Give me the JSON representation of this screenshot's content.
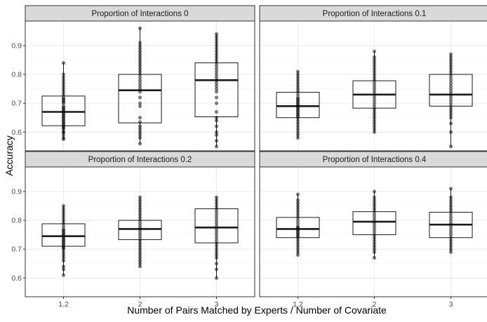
{
  "chart_data": {
    "type": "boxplot",
    "title": "",
    "xlabel": "Number of Pairs Matched by Experts / Number of Covariate",
    "ylabel": "Accuracy",
    "categories": [
      "1.2",
      "2",
      "3"
    ],
    "y_ticks": [
      0.6,
      0.7,
      0.8,
      0.9
    ],
    "y_tick_labels": [
      "0.6",
      "0.7",
      "0.8",
      "0.9"
    ],
    "ylim": [
      0.535,
      0.985
    ],
    "grid": true,
    "facet_layout": "2x2",
    "colors": {
      "strip_fill": "#d9d9d9",
      "panel_border": "#333333",
      "grid_major": "#ebebeb",
      "grid_minor": "#f4f4f4",
      "box_line": "#1a1a1a",
      "point": "#000000"
    },
    "panels": [
      {
        "label": "Proportion of Interactions 0",
        "boxes": [
          {
            "category": "1.2",
            "min": 0.575,
            "q1": 0.622,
            "median": 0.67,
            "q3": 0.725,
            "max": 0.84,
            "points": [
              0.575,
              0.58,
              0.59,
              0.6,
              0.6,
              0.61,
              0.615,
              0.62,
              0.625,
              0.63,
              0.635,
              0.64,
              0.645,
              0.65,
              0.655,
              0.66,
              0.665,
              0.67,
              0.675,
              0.68,
              0.685,
              0.69,
              0.7,
              0.705,
              0.71,
              0.715,
              0.72,
              0.73,
              0.74,
              0.75,
              0.76,
              0.77,
              0.78,
              0.79,
              0.8,
              0.84
            ]
          },
          {
            "category": "2",
            "min": 0.56,
            "q1": 0.632,
            "median": 0.745,
            "q3": 0.8,
            "max": 0.96,
            "points": [
              0.56,
              0.58,
              0.59,
              0.6,
              0.61,
              0.62,
              0.635,
              0.65,
              0.69,
              0.7,
              0.72,
              0.74,
              0.75,
              0.76,
              0.77,
              0.78,
              0.79,
              0.8,
              0.81,
              0.82,
              0.83,
              0.84,
              0.85,
              0.86,
              0.87,
              0.88,
              0.89,
              0.9,
              0.91,
              0.96
            ]
          },
          {
            "category": "3",
            "min": 0.55,
            "q1": 0.653,
            "median": 0.78,
            "q3": 0.84,
            "max": 0.94,
            "points": [
              0.55,
              0.57,
              0.59,
              0.6,
              0.62,
              0.64,
              0.65,
              0.67,
              0.7,
              0.72,
              0.74,
              0.75,
              0.76,
              0.77,
              0.78,
              0.79,
              0.8,
              0.81,
              0.82,
              0.83,
              0.84,
              0.85,
              0.86,
              0.87,
              0.88,
              0.89,
              0.9,
              0.91,
              0.92,
              0.93,
              0.94
            ]
          }
        ]
      },
      {
        "label": "Proportion of Interactions 0.1",
        "boxes": [
          {
            "category": "1.2",
            "min": 0.58,
            "q1": 0.65,
            "median": 0.69,
            "q3": 0.738,
            "max": 0.81,
            "points": [
              0.58,
              0.59,
              0.6,
              0.61,
              0.62,
              0.63,
              0.64,
              0.65,
              0.655,
              0.66,
              0.665,
              0.67,
              0.675,
              0.68,
              0.685,
              0.69,
              0.695,
              0.7,
              0.705,
              0.71,
              0.715,
              0.72,
              0.73,
              0.74,
              0.75,
              0.76,
              0.77,
              0.78,
              0.79,
              0.8,
              0.81
            ]
          },
          {
            "category": "2",
            "min": 0.6,
            "q1": 0.683,
            "median": 0.73,
            "q3": 0.778,
            "max": 0.88,
            "points": [
              0.6,
              0.61,
              0.62,
              0.63,
              0.64,
              0.65,
              0.66,
              0.67,
              0.68,
              0.69,
              0.7,
              0.71,
              0.72,
              0.73,
              0.74,
              0.75,
              0.76,
              0.77,
              0.78,
              0.79,
              0.8,
              0.81,
              0.82,
              0.83,
              0.84,
              0.85,
              0.86,
              0.88
            ]
          },
          {
            "category": "3",
            "min": 0.55,
            "q1": 0.69,
            "median": 0.73,
            "q3": 0.8,
            "max": 0.87,
            "points": [
              0.55,
              0.6,
              0.63,
              0.65,
              0.66,
              0.67,
              0.68,
              0.69,
              0.7,
              0.71,
              0.72,
              0.73,
              0.74,
              0.75,
              0.76,
              0.77,
              0.78,
              0.79,
              0.8,
              0.81,
              0.82,
              0.83,
              0.84,
              0.85,
              0.86,
              0.87
            ]
          }
        ]
      },
      {
        "label": "Proportion of Interactions 0.2",
        "boxes": [
          {
            "category": "1.2",
            "min": 0.61,
            "q1": 0.71,
            "median": 0.745,
            "q3": 0.788,
            "max": 0.85,
            "points": [
              0.61,
              0.63,
              0.64,
              0.66,
              0.67,
              0.68,
              0.69,
              0.7,
              0.705,
              0.71,
              0.715,
              0.72,
              0.725,
              0.73,
              0.735,
              0.74,
              0.745,
              0.75,
              0.755,
              0.76,
              0.765,
              0.77,
              0.78,
              0.79,
              0.8,
              0.81,
              0.82,
              0.83,
              0.84,
              0.85
            ]
          },
          {
            "category": "2",
            "min": 0.64,
            "q1": 0.733,
            "median": 0.77,
            "q3": 0.8,
            "max": 0.88,
            "points": [
              0.64,
              0.65,
              0.66,
              0.67,
              0.68,
              0.69,
              0.7,
              0.71,
              0.72,
              0.73,
              0.74,
              0.75,
              0.76,
              0.77,
              0.78,
              0.79,
              0.8,
              0.81,
              0.82,
              0.83,
              0.84,
              0.85,
              0.86,
              0.87,
              0.88
            ]
          },
          {
            "category": "3",
            "min": 0.6,
            "q1": 0.722,
            "median": 0.775,
            "q3": 0.84,
            "max": 0.88,
            "points": [
              0.6,
              0.63,
              0.65,
              0.67,
              0.68,
              0.69,
              0.7,
              0.71,
              0.72,
              0.73,
              0.74,
              0.75,
              0.76,
              0.77,
              0.78,
              0.79,
              0.8,
              0.81,
              0.82,
              0.83,
              0.84,
              0.85,
              0.86,
              0.87,
              0.88
            ]
          }
        ]
      },
      {
        "label": "Proportion of Interactions 0.4",
        "boxes": [
          {
            "category": "1.2",
            "min": 0.68,
            "q1": 0.74,
            "median": 0.77,
            "q3": 0.81,
            "max": 0.89,
            "points": [
              0.68,
              0.69,
              0.7,
              0.71,
              0.72,
              0.73,
              0.74,
              0.745,
              0.75,
              0.755,
              0.76,
              0.765,
              0.77,
              0.775,
              0.78,
              0.79,
              0.8,
              0.81,
              0.82,
              0.83,
              0.84,
              0.85,
              0.86,
              0.87,
              0.89
            ]
          },
          {
            "category": "2",
            "min": 0.67,
            "q1": 0.75,
            "median": 0.795,
            "q3": 0.83,
            "max": 0.9,
            "points": [
              0.67,
              0.69,
              0.7,
              0.71,
              0.72,
              0.73,
              0.74,
              0.75,
              0.76,
              0.77,
              0.78,
              0.79,
              0.8,
              0.81,
              0.82,
              0.83,
              0.84,
              0.85,
              0.86,
              0.87,
              0.88,
              0.9
            ]
          },
          {
            "category": "3",
            "min": 0.69,
            "q1": 0.74,
            "median": 0.785,
            "q3": 0.828,
            "max": 0.91,
            "points": [
              0.69,
              0.7,
              0.71,
              0.72,
              0.73,
              0.74,
              0.75,
              0.76,
              0.77,
              0.78,
              0.79,
              0.8,
              0.81,
              0.82,
              0.83,
              0.84,
              0.85,
              0.86,
              0.87,
              0.88,
              0.91
            ]
          }
        ]
      }
    ]
  }
}
